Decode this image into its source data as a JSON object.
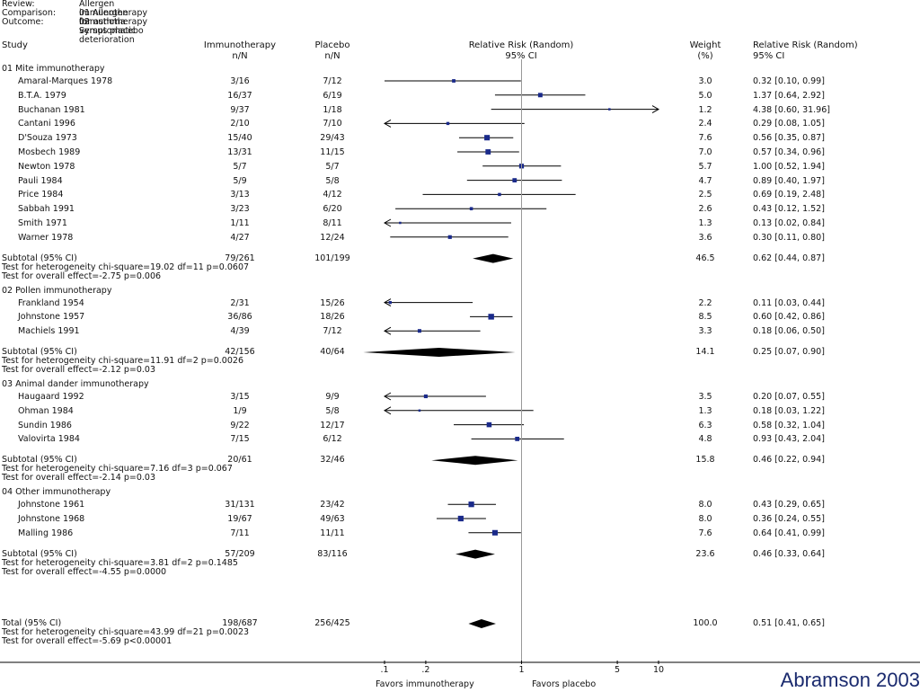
{
  "header": {
    "review_label": "Review:",
    "review_value": "Allergen immunotherapy for asthma",
    "comparison_label": "Comparison:",
    "comparison_value": "01 Allergen immunotherapy versus placebo",
    "outcome_label": "Outcome:",
    "outcome_value": "02 Symptomatic deterioration"
  },
  "columns": {
    "study": "Study",
    "treat1": "Immunotherapy",
    "treat2": "n/N",
    "ctrl1": "Placebo",
    "ctrl2": "n/N",
    "rr1": "Relative Risk (Random)",
    "rr2": "95% CI",
    "weight1": "Weight",
    "weight2": "(%)",
    "rrtext1": "Relative Risk (Random)",
    "rrtext2": "95% CI"
  },
  "credit": "Abramson 2003",
  "colors": {
    "box": "#1a2a8a",
    "line": "#000000",
    "ref": "#999999",
    "credit": "#1a2a6e"
  },
  "chart_data": {
    "type": "forest",
    "x_scale": "log",
    "xlim": [
      0.1,
      10
    ],
    "ticks": [
      ".1",
      ".2",
      "1",
      "5",
      "10"
    ],
    "tick_values": [
      0.1,
      0.2,
      1,
      5,
      10
    ],
    "favors_left": "Favors immunotherapy",
    "favors_right": "Favors placebo",
    "groups": [
      {
        "title": "01 Mite immunotherapy",
        "studies": [
          {
            "name": "Amaral-Marques 1978",
            "t": "3/16",
            "c": "7/12",
            "w": "3.0",
            "ci": "0.32 [0.10, 0.99]",
            "rr": 0.32,
            "lo": 0.1,
            "hi": 0.99,
            "wt": 3.0
          },
          {
            "name": "B.T.A. 1979",
            "t": "16/37",
            "c": "6/19",
            "w": "5.0",
            "ci": "1.37 [0.64, 2.92]",
            "rr": 1.37,
            "lo": 0.64,
            "hi": 2.92,
            "wt": 5.0
          },
          {
            "name": "Buchanan 1981",
            "t": "9/37",
            "c": "1/18",
            "w": "1.2",
            "ci": "4.38 [0.60, 31.96]",
            "rr": 4.38,
            "lo": 0.6,
            "hi": 31.96,
            "wt": 1.2
          },
          {
            "name": "Cantani 1996",
            "t": "2/10",
            "c": "7/10",
            "w": "2.4",
            "ci": "0.29 [0.08, 1.05]",
            "rr": 0.29,
            "lo": 0.08,
            "hi": 1.05,
            "wt": 2.4
          },
          {
            "name": "D'Souza 1973",
            "t": "15/40",
            "c": "29/43",
            "w": "7.6",
            "ci": "0.56 [0.35, 0.87]",
            "rr": 0.56,
            "lo": 0.35,
            "hi": 0.87,
            "wt": 7.6
          },
          {
            "name": "Mosbech 1989",
            "t": "13/31",
            "c": "11/15",
            "w": "7.0",
            "ci": "0.57 [0.34, 0.96]",
            "rr": 0.57,
            "lo": 0.34,
            "hi": 0.96,
            "wt": 7.0
          },
          {
            "name": "Newton 1978",
            "t": "5/7",
            "c": "5/7",
            "w": "5.7",
            "ci": "1.00 [0.52, 1.94]",
            "rr": 1.0,
            "lo": 0.52,
            "hi": 1.94,
            "wt": 5.7
          },
          {
            "name": "Pauli 1984",
            "t": "5/9",
            "c": "5/8",
            "w": "4.7",
            "ci": "0.89 [0.40, 1.97]",
            "rr": 0.89,
            "lo": 0.4,
            "hi": 1.97,
            "wt": 4.7
          },
          {
            "name": "Price 1984",
            "t": "3/13",
            "c": "4/12",
            "w": "2.5",
            "ci": "0.69 [0.19, 2.48]",
            "rr": 0.69,
            "lo": 0.19,
            "hi": 2.48,
            "wt": 2.5
          },
          {
            "name": "Sabbah 1991",
            "t": "3/23",
            "c": "6/20",
            "w": "2.6",
            "ci": "0.43 [0.12, 1.52]",
            "rr": 0.43,
            "lo": 0.12,
            "hi": 1.52,
            "wt": 2.6
          },
          {
            "name": "Smith 1971",
            "t": "1/11",
            "c": "8/11",
            "w": "1.3",
            "ci": "0.13 [0.02, 0.84]",
            "rr": 0.13,
            "lo": 0.02,
            "hi": 0.84,
            "wt": 1.3
          },
          {
            "name": "Warner 1978",
            "t": "4/27",
            "c": "12/24",
            "w": "3.6",
            "ci": "0.30 [0.11, 0.80]",
            "rr": 0.3,
            "lo": 0.11,
            "hi": 0.8,
            "wt": 3.6
          }
        ],
        "subtotal": {
          "label": "Subtotal (95% CI)",
          "t": "79/261",
          "c": "101/199",
          "w": "46.5",
          "ci": "0.62 [0.44, 0.87]",
          "rr": 0.62,
          "lo": 0.44,
          "hi": 0.87
        },
        "het": "Test for heterogeneity chi-square=19.02 df=11 p=0.0607",
        "eff": "Test for overall effect=-2.75 p=0.006"
      },
      {
        "title": "02 Pollen immunotherapy",
        "studies": [
          {
            "name": "Frankland 1954",
            "t": "2/31",
            "c": "15/26",
            "w": "2.2",
            "ci": "0.11 [0.03, 0.44]",
            "rr": 0.11,
            "lo": 0.03,
            "hi": 0.44,
            "wt": 2.2
          },
          {
            "name": "Johnstone 1957",
            "t": "36/86",
            "c": "18/26",
            "w": "8.5",
            "ci": "0.60 [0.42, 0.86]",
            "rr": 0.6,
            "lo": 0.42,
            "hi": 0.86,
            "wt": 8.5
          },
          {
            "name": "Machiels 1991",
            "t": "4/39",
            "c": "7/12",
            "w": "3.3",
            "ci": "0.18 [0.06, 0.50]",
            "rr": 0.18,
            "lo": 0.06,
            "hi": 0.5,
            "wt": 3.3
          }
        ],
        "subtotal": {
          "label": "Subtotal (95% CI)",
          "t": "42/156",
          "c": "40/64",
          "w": "14.1",
          "ci": "0.25 [0.07, 0.90]",
          "rr": 0.25,
          "lo": 0.07,
          "hi": 0.9
        },
        "het": "Test for heterogeneity chi-square=11.91 df=2 p=0.0026",
        "eff": "Test for overall effect=-2.12 p=0.03"
      },
      {
        "title": "03 Animal dander immunotherapy",
        "studies": [
          {
            "name": "Haugaard 1992",
            "t": "3/15",
            "c": "9/9",
            "w": "3.5",
            "ci": "0.20 [0.07, 0.55]",
            "rr": 0.2,
            "lo": 0.07,
            "hi": 0.55,
            "wt": 3.5
          },
          {
            "name": "Ohman 1984",
            "t": "1/9",
            "c": "5/8",
            "w": "1.3",
            "ci": "0.18 [0.03, 1.22]",
            "rr": 0.18,
            "lo": 0.03,
            "hi": 1.22,
            "wt": 1.3
          },
          {
            "name": "Sundin 1986",
            "t": "9/22",
            "c": "12/17",
            "w": "6.3",
            "ci": "0.58 [0.32, 1.04]",
            "rr": 0.58,
            "lo": 0.32,
            "hi": 1.04,
            "wt": 6.3
          },
          {
            "name": "Valovirta 1984",
            "t": "7/15",
            "c": "6/12",
            "w": "4.8",
            "ci": "0.93 [0.43, 2.04]",
            "rr": 0.93,
            "lo": 0.43,
            "hi": 2.04,
            "wt": 4.8
          }
        ],
        "subtotal": {
          "label": "Subtotal (95% CI)",
          "t": "20/61",
          "c": "32/46",
          "w": "15.8",
          "ci": "0.46 [0.22, 0.94]",
          "rr": 0.46,
          "lo": 0.22,
          "hi": 0.94
        },
        "het": "Test for heterogeneity chi-square=7.16 df=3 p=0.067",
        "eff": "Test for overall effect=-2.14 p=0.03"
      },
      {
        "title": "04 Other immunotherapy",
        "studies": [
          {
            "name": "Johnstone 1961",
            "t": "31/131",
            "c": "23/42",
            "w": "8.0",
            "ci": "0.43 [0.29, 0.65]",
            "rr": 0.43,
            "lo": 0.29,
            "hi": 0.65,
            "wt": 8.0
          },
          {
            "name": "Johnstone 1968",
            "t": "19/67",
            "c": "49/63",
            "w": "8.0",
            "ci": "0.36 [0.24, 0.55]",
            "rr": 0.36,
            "lo": 0.24,
            "hi": 0.55,
            "wt": 8.0
          },
          {
            "name": "Malling 1986",
            "t": "7/11",
            "c": "11/11",
            "w": "7.6",
            "ci": "0.64 [0.41, 0.99]",
            "rr": 0.64,
            "lo": 0.41,
            "hi": 0.99,
            "wt": 7.6
          }
        ],
        "subtotal": {
          "label": "Subtotal (95% CI)",
          "t": "57/209",
          "c": "83/116",
          "w": "23.6",
          "ci": "0.46 [0.33, 0.64]",
          "rr": 0.46,
          "lo": 0.33,
          "hi": 0.64
        },
        "het": "Test for heterogeneity chi-square=3.81 df=2 p=0.1485",
        "eff": "Test for overall effect=-4.55 p=0.0000"
      }
    ],
    "total": {
      "label": "Total (95% CI)",
      "t": "198/687",
      "c": "256/425",
      "w": "100.0",
      "ci": "0.51 [0.41, 0.65]",
      "rr": 0.51,
      "lo": 0.41,
      "hi": 0.65
    },
    "total_het": "Test for heterogeneity chi-square=43.99 df=21 p=0.0023",
    "total_eff": "Test for overall effect=-5.69 p<0.00001"
  }
}
